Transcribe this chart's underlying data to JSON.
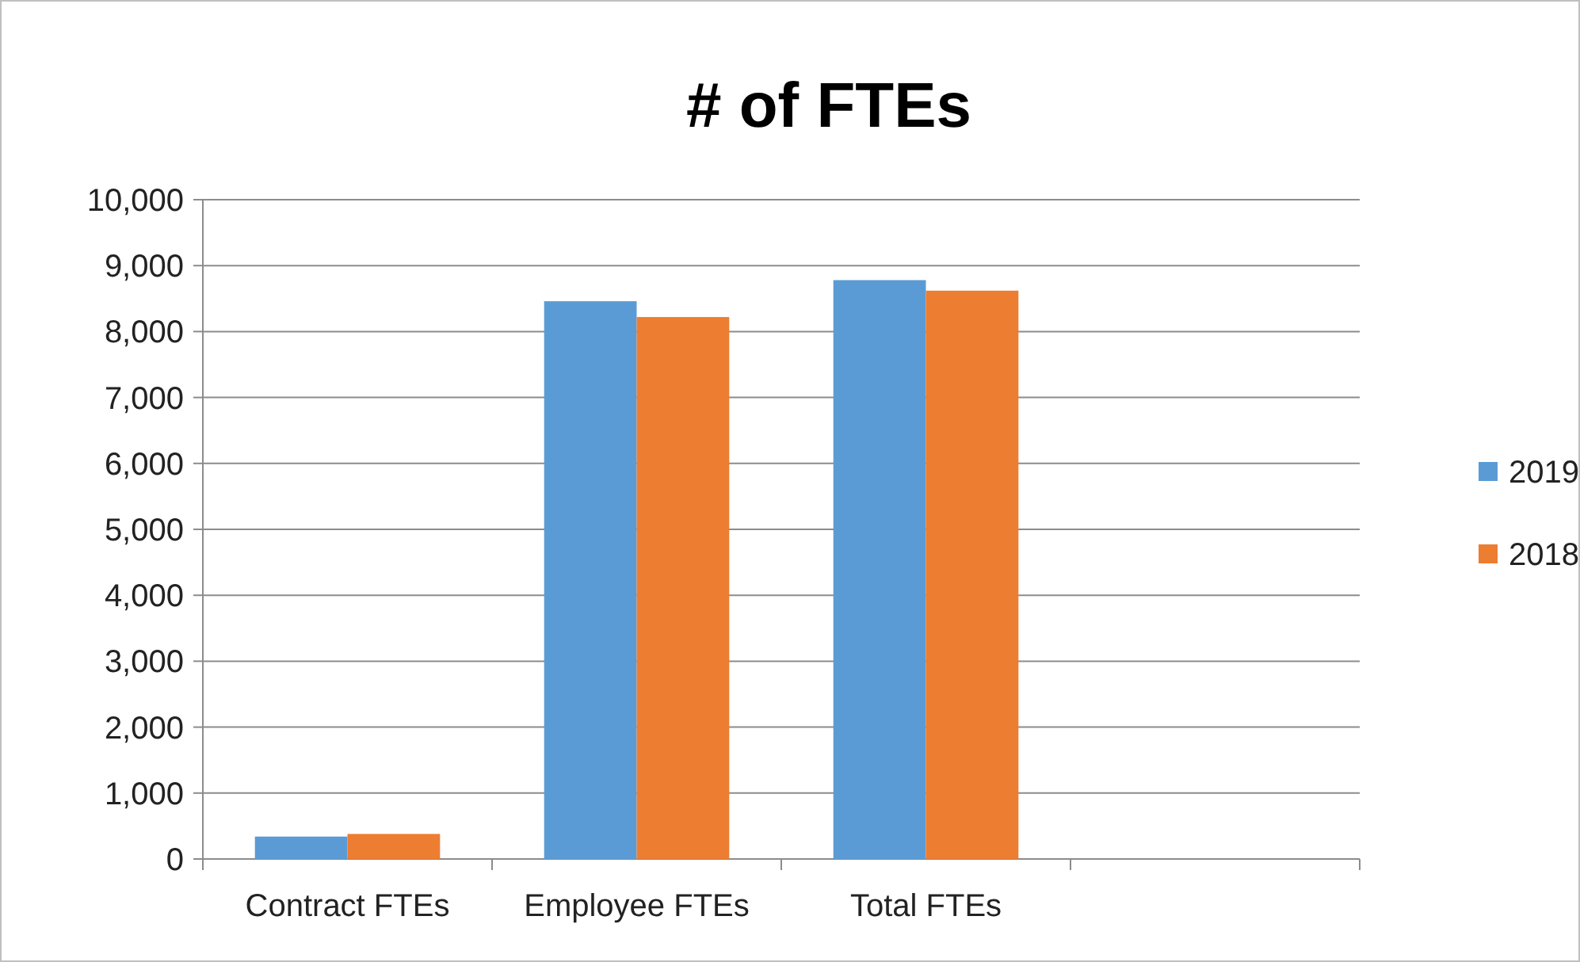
{
  "chart_data": {
    "type": "bar",
    "title": "# of FTEs",
    "categories": [
      "Contract FTEs",
      "Employee FTEs",
      "Total FTEs",
      null
    ],
    "series": [
      {
        "name": "2019",
        "color": "#5b9bd5",
        "values": [
          340,
          8460,
          8780,
          null
        ]
      },
      {
        "name": "2018",
        "color": "#ed7d31",
        "values": [
          380,
          8220,
          8620,
          null
        ]
      }
    ],
    "ylim": [
      0,
      10000
    ],
    "yticks": [
      {
        "value": 0,
        "label": "0"
      },
      {
        "value": 1000,
        "label": "1,000"
      },
      {
        "value": 2000,
        "label": "2,000"
      },
      {
        "value": 3000,
        "label": "3,000"
      },
      {
        "value": 4000,
        "label": "4,000"
      },
      {
        "value": 5000,
        "label": "5,000"
      },
      {
        "value": 6000,
        "label": "6,000"
      },
      {
        "value": 7000,
        "label": "7,000"
      },
      {
        "value": 8000,
        "label": "8,000"
      },
      {
        "value": 9000,
        "label": "9,000"
      },
      {
        "value": 10000,
        "label": "10,000"
      }
    ],
    "grid": "y",
    "legend": "right"
  }
}
